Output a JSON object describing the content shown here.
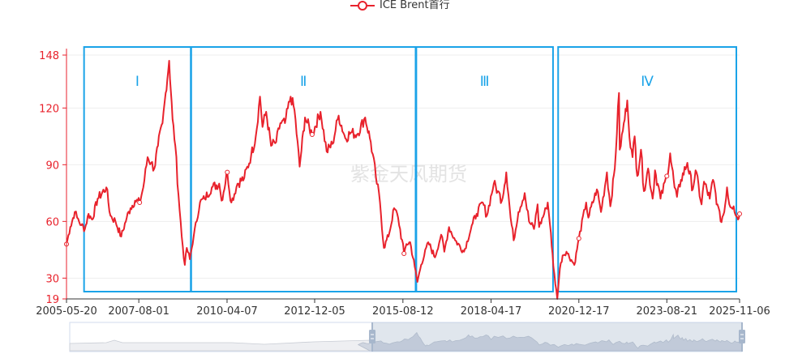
{
  "legend": {
    "items": [
      {
        "label": "ICE Brent首行",
        "color": "#e8222c",
        "icon": "circle-line-icon"
      }
    ]
  },
  "watermark": "紫金天风期货",
  "colors": {
    "series": "#e8222c",
    "y_axis": "#e8222c",
    "x_axis_text": "#333333",
    "region_box": "#1aa3e8",
    "grid": "#eeeeee",
    "datazoom_fill": "#d8dde8",
    "datazoom_handle": "#a7b7cc"
  },
  "regions": [
    {
      "label": "Ⅰ",
      "start": "2005-12-01",
      "end": "2009-02-28"
    },
    {
      "label": "Ⅱ",
      "start": "2009-03-05",
      "end": "2015-12-31"
    },
    {
      "label": "Ⅲ",
      "start": "2016-01-08",
      "end": "2020-03-05"
    },
    {
      "label": "Ⅳ",
      "start": "2020-05-01",
      "end": "2025-10-01"
    }
  ],
  "datazoom": {
    "range_start_pct": 45,
    "range_end_pct": 100
  },
  "chart_data": {
    "type": "line",
    "title": "",
    "legend": [
      "ICE Brent首行"
    ],
    "legend_position": "top-center",
    "xlabel": "",
    "ylabel": "",
    "x_ticks": [
      "2005-05-20",
      "2007-08-01",
      "2010-04-07",
      "2012-12-05",
      "2015-08-12",
      "2018-04-17",
      "2020-12-17",
      "2023-08-21",
      "2025-11-06"
    ],
    "y_ticks": [
      19,
      30,
      60,
      90,
      120,
      148
    ],
    "ylim": [
      19,
      148
    ],
    "xlim": [
      "2005-05-20",
      "2025-11-06"
    ],
    "grid": true,
    "series": [
      {
        "name": "ICE Brent首行",
        "points": [
          [
            "2005-05-20",
            48
          ],
          [
            "2005-07-01",
            57
          ],
          [
            "2005-08-20",
            65
          ],
          [
            "2005-09-15",
            62
          ],
          [
            "2005-11-01",
            58
          ],
          [
            "2005-12-10",
            56
          ],
          [
            "2006-01-20",
            64
          ],
          [
            "2006-03-01",
            61
          ],
          [
            "2006-05-01",
            72
          ],
          [
            "2006-08-05",
            78
          ],
          [
            "2006-09-20",
            63
          ],
          [
            "2006-11-15",
            60
          ],
          [
            "2007-01-18",
            52
          ],
          [
            "2007-03-20",
            62
          ],
          [
            "2007-05-01",
            67
          ],
          [
            "2007-06-20",
            71
          ],
          [
            "2007-08-10",
            70
          ],
          [
            "2007-09-20",
            78
          ],
          [
            "2007-11-07",
            94
          ],
          [
            "2007-12-15",
            91
          ],
          [
            "2008-01-20",
            88
          ],
          [
            "2008-03-01",
            100
          ],
          [
            "2008-04-20",
            112
          ],
          [
            "2008-05-25",
            128
          ],
          [
            "2008-07-03",
            145
          ],
          [
            "2008-08-10",
            114
          ],
          [
            "2008-09-10",
            100
          ],
          [
            "2008-10-15",
            74
          ],
          [
            "2008-11-20",
            52
          ],
          [
            "2008-12-24",
            37
          ],
          [
            "2009-01-15",
            46
          ],
          [
            "2009-02-18",
            40
          ],
          [
            "2009-04-01",
            52
          ],
          [
            "2009-06-10",
            70
          ],
          [
            "2009-08-01",
            72
          ],
          [
            "2009-10-20",
            78
          ],
          [
            "2010-01-10",
            80
          ],
          [
            "2010-02-05",
            71
          ],
          [
            "2010-04-10",
            86
          ],
          [
            "2010-05-25",
            70
          ],
          [
            "2010-08-01",
            80
          ],
          [
            "2010-10-15",
            83
          ],
          [
            "2010-12-31",
            95
          ],
          [
            "2011-02-20",
            105
          ],
          [
            "2011-04-08",
            126
          ],
          [
            "2011-05-06",
            110
          ],
          [
            "2011-06-15",
            118
          ],
          [
            "2011-08-08",
            100
          ],
          [
            "2011-10-05",
            102
          ],
          [
            "2011-11-20",
            112
          ],
          [
            "2012-01-10",
            112
          ],
          [
            "2012-03-13",
            126
          ],
          [
            "2012-04-25",
            119
          ],
          [
            "2012-06-21",
            89
          ],
          [
            "2012-08-20",
            115
          ],
          [
            "2012-11-07",
            106
          ],
          [
            "2013-02-08",
            118
          ],
          [
            "2013-04-17",
            97
          ],
          [
            "2013-06-20",
            101
          ],
          [
            "2013-08-28",
            116
          ],
          [
            "2013-11-10",
            104
          ],
          [
            "2014-01-10",
            107
          ],
          [
            "2014-03-20",
            106
          ],
          [
            "2014-06-19",
            115
          ],
          [
            "2014-08-20",
            102
          ],
          [
            "2014-10-15",
            84
          ],
          [
            "2014-12-01",
            70
          ],
          [
            "2015-01-13",
            46
          ],
          [
            "2015-03-15",
            54
          ],
          [
            "2015-05-06",
            67
          ],
          [
            "2015-06-20",
            62
          ],
          [
            "2015-08-24",
            43
          ],
          [
            "2015-09-20",
            48
          ],
          [
            "2015-11-01",
            49
          ],
          [
            "2015-12-21",
            36
          ],
          [
            "2016-01-20",
            28
          ],
          [
            "2016-03-01",
            37
          ],
          [
            "2016-05-20",
            49
          ],
          [
            "2016-08-02",
            41
          ],
          [
            "2016-10-10",
            53
          ],
          [
            "2016-11-14",
            44
          ],
          [
            "2017-01-05",
            57
          ],
          [
            "2017-03-15",
            50
          ],
          [
            "2017-06-21",
            44
          ],
          [
            "2017-09-25",
            59
          ],
          [
            "2017-11-07",
            64
          ],
          [
            "2018-01-15",
            70
          ],
          [
            "2018-03-01",
            63
          ],
          [
            "2018-05-17",
            80
          ],
          [
            "2018-07-01",
            76
          ],
          [
            "2018-08-15",
            71
          ],
          [
            "2018-10-03",
            86
          ],
          [
            "2018-11-20",
            62
          ],
          [
            "2018-12-24",
            50
          ],
          [
            "2019-02-15",
            65
          ],
          [
            "2019-04-25",
            75
          ],
          [
            "2019-06-12",
            60
          ],
          [
            "2019-08-07",
            56
          ],
          [
            "2019-09-16",
            69
          ],
          [
            "2019-10-03",
            57
          ],
          [
            "2019-12-20",
            67
          ],
          [
            "2020-01-06",
            70
          ],
          [
            "2020-02-10",
            54
          ],
          [
            "2020-03-09",
            36
          ],
          [
            "2020-04-21",
            19
          ],
          [
            "2020-05-20",
            35
          ],
          [
            "2020-06-20",
            42
          ],
          [
            "2020-08-01",
            44
          ],
          [
            "2020-10-28",
            37
          ],
          [
            "2020-12-17",
            51
          ],
          [
            "2021-03-08",
            70
          ],
          [
            "2021-04-01",
            62
          ],
          [
            "2021-07-05",
            77
          ],
          [
            "2021-08-20",
            65
          ],
          [
            "2021-10-25",
            86
          ],
          [
            "2021-12-01",
            68
          ],
          [
            "2022-01-20",
            88
          ],
          [
            "2022-03-08",
            128
          ],
          [
            "2022-03-16",
            98
          ],
          [
            "2022-04-20",
            108
          ],
          [
            "2022-06-08",
            124
          ],
          [
            "2022-07-14",
            99
          ],
          [
            "2022-08-05",
            94
          ],
          [
            "2022-08-29",
            105
          ],
          [
            "2022-09-26",
            84
          ],
          [
            "2022-11-07",
            98
          ],
          [
            "2022-12-09",
            76
          ],
          [
            "2023-01-25",
            88
          ],
          [
            "2023-03-17",
            72
          ],
          [
            "2023-04-12",
            87
          ],
          [
            "2023-06-12",
            72
          ],
          [
            "2023-08-21",
            84
          ],
          [
            "2023-09-27",
            96
          ],
          [
            "2023-11-15",
            78
          ],
          [
            "2023-12-12",
            73
          ],
          [
            "2024-01-25",
            82
          ],
          [
            "2024-04-05",
            91
          ],
          [
            "2024-06-04",
            77
          ],
          [
            "2024-07-05",
            87
          ],
          [
            "2024-09-10",
            69
          ],
          [
            "2024-10-07",
            81
          ],
          [
            "2024-12-10",
            72
          ],
          [
            "2025-01-15",
            82
          ],
          [
            "2025-03-05",
            69
          ],
          [
            "2025-04-09",
            60
          ],
          [
            "2025-05-20",
            65
          ],
          [
            "2025-06-19",
            78
          ],
          [
            "2025-07-15",
            69
          ],
          [
            "2025-09-01",
            68
          ],
          [
            "2025-10-20",
            61
          ],
          [
            "2025-11-06",
            64
          ]
        ],
        "symbols_at": [
          "2005-05-20",
          "2007-08-10",
          "2010-04-10",
          "2012-11-07",
          "2015-08-24",
          "2018-04-17",
          "2020-12-17",
          "2023-08-21",
          "2025-11-06"
        ]
      }
    ]
  }
}
